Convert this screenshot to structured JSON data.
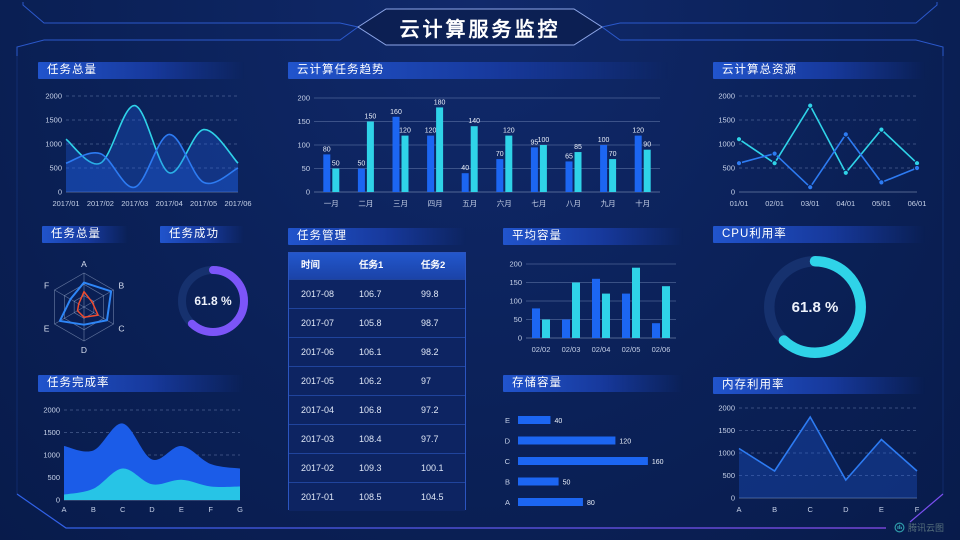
{
  "header": {
    "title": "云计算服务监控"
  },
  "footer": {
    "brand": "腾讯云图"
  },
  "colors": {
    "blue": "#1c66f2",
    "cyan": "#2fd3e8",
    "lineBlue": "#2d7bf2",
    "purple": "#7c55f8",
    "red": "#ef4b2f",
    "track": "#16316e",
    "grid": "rgba(150,172,214,0.45)",
    "areaFill": "rgba(34,96,230,0.30)"
  },
  "chart_data": [
    {
      "id": "taskTotalLine",
      "panel_title": "任务总量",
      "type": "line",
      "smooth": true,
      "area": true,
      "markers": false,
      "grid": "dashed",
      "categories": [
        "2017/01",
        "2017/02",
        "2017/03",
        "2017/04",
        "2017/05",
        "2017/06"
      ],
      "series": [
        {
          "name": "series-cyan",
          "color": "cyan",
          "values": [
            1100,
            600,
            1800,
            400,
            1300,
            600
          ]
        },
        {
          "name": "series-blue",
          "color": "lineBlue",
          "values": [
            600,
            800,
            100,
            1200,
            200,
            500
          ]
        }
      ],
      "ylim": [
        0,
        2000
      ],
      "yticks": [
        0,
        500,
        1000,
        1500,
        2000
      ]
    },
    {
      "id": "taskTrendBar",
      "panel_title": "云计算任务趋势",
      "type": "bar",
      "labels": true,
      "grid": "solid",
      "categories": [
        "一月",
        "二月",
        "三月",
        "四月",
        "五月",
        "六月",
        "七月",
        "八月",
        "九月",
        "十月"
      ],
      "series": [
        {
          "name": "series-blue",
          "color": "blue",
          "values": [
            80,
            50,
            160,
            120,
            40,
            70,
            95,
            65,
            100,
            120
          ]
        },
        {
          "name": "series-cyan",
          "color": "cyan",
          "values": [
            50,
            150,
            120,
            180,
            140,
            120,
            100,
            85,
            70,
            90
          ]
        }
      ],
      "ylim": [
        0,
        200
      ],
      "yticks": [
        0,
        50,
        100,
        150,
        200
      ]
    },
    {
      "id": "resourceLine",
      "panel_title": "云计算总资源",
      "type": "line",
      "smooth": false,
      "area": false,
      "markers": true,
      "grid": "dashed",
      "categories": [
        "01/01",
        "02/01",
        "03/01",
        "04/01",
        "05/01",
        "06/01"
      ],
      "series": [
        {
          "name": "series-cyan",
          "color": "cyan",
          "values": [
            1100,
            600,
            1800,
            400,
            1300,
            600
          ]
        },
        {
          "name": "series-blue",
          "color": "lineBlue",
          "values": [
            600,
            800,
            100,
            1200,
            200,
            500
          ]
        }
      ],
      "ylim": [
        0,
        2000
      ],
      "yticks": [
        0,
        500,
        1000,
        1500,
        2000
      ]
    },
    {
      "id": "taskRadar",
      "panel_title": "任务总量",
      "type": "radar",
      "axes": [
        "A",
        "B",
        "C",
        "D",
        "E",
        "F"
      ],
      "max": 100,
      "series": [
        {
          "name": "radar-blue",
          "color": "#2e86f7",
          "values": [
            72,
            92,
            78,
            52,
            82,
            46
          ]
        },
        {
          "name": "radar-red",
          "color": "red",
          "values": [
            45,
            28,
            48,
            30,
            22,
            18
          ]
        }
      ]
    },
    {
      "id": "taskSuccess",
      "panel_title": "任务成功",
      "type": "donut",
      "value": 61.8,
      "display": "61.8 %",
      "color": "purple"
    },
    {
      "id": "avgCapacity",
      "panel_title": "平均容量",
      "type": "bar",
      "labels": false,
      "grid": "solid",
      "categories": [
        "02/02",
        "02/03",
        "02/04",
        "02/05",
        "02/06"
      ],
      "series": [
        {
          "name": "series-blue",
          "color": "blue",
          "values": [
            80,
            50,
            160,
            120,
            40
          ]
        },
        {
          "name": "series-cyan",
          "color": "cyan",
          "values": [
            50,
            150,
            120,
            190,
            140
          ]
        }
      ],
      "ylim": [
        0,
        200
      ],
      "yticks": [
        0,
        50,
        100,
        150,
        200
      ]
    },
    {
      "id": "cpuUsage",
      "panel_title": "CPU利用率",
      "type": "donut",
      "value": 61.8,
      "display": "61.8 %",
      "color": "cyan"
    },
    {
      "id": "taskCompletion",
      "panel_title": "任务完成率",
      "type": "stacked-area",
      "grid": "dashed",
      "categories": [
        "A",
        "B",
        "C",
        "D",
        "E",
        "F",
        "G"
      ],
      "series": [
        {
          "name": "area-blue",
          "color": "#1b5ce8",
          "values": [
            1200,
            1100,
            1700,
            900,
            1200,
            800,
            700
          ]
        },
        {
          "name": "area-cyan",
          "color": "#27c4e6",
          "values": [
            120,
            250,
            700,
            350,
            450,
            300,
            300
          ]
        }
      ],
      "ylim": [
        0,
        2000
      ],
      "yticks": [
        0,
        500,
        1000,
        1500,
        2000
      ]
    },
    {
      "id": "storage",
      "panel_title": "存储容量",
      "type": "hbar",
      "categories": [
        "E",
        "D",
        "C",
        "B",
        "A"
      ],
      "values": [
        40,
        120,
        160,
        50,
        80
      ],
      "xmax": 170,
      "color": "blue"
    },
    {
      "id": "memory",
      "panel_title": "内存利用率",
      "type": "line",
      "smooth": false,
      "area": true,
      "markers": false,
      "grid": "dashed",
      "categories": [
        "A",
        "B",
        "C",
        "D",
        "E",
        "F"
      ],
      "series": [
        {
          "name": "series-blue",
          "color": "lineBlue",
          "values": [
            1100,
            600,
            1800,
            400,
            1300,
            600
          ]
        }
      ],
      "ylim": [
        0,
        2000
      ],
      "yticks": [
        0,
        500,
        1000,
        1500,
        2000
      ]
    }
  ],
  "table": {
    "title": "任务管理",
    "columns": [
      "时间",
      "任务1",
      "任务2"
    ],
    "rows": [
      [
        "2017-08",
        "106.7",
        "99.8"
      ],
      [
        "2017-07",
        "105.8",
        "98.7"
      ],
      [
        "2017-06",
        "106.1",
        "98.2"
      ],
      [
        "2017-05",
        "106.2",
        "97"
      ],
      [
        "2017-04",
        "106.8",
        "97.2"
      ],
      [
        "2017-03",
        "108.4",
        "97.7"
      ],
      [
        "2017-02",
        "109.3",
        "100.1"
      ],
      [
        "2017-01",
        "108.5",
        "104.5"
      ]
    ]
  }
}
